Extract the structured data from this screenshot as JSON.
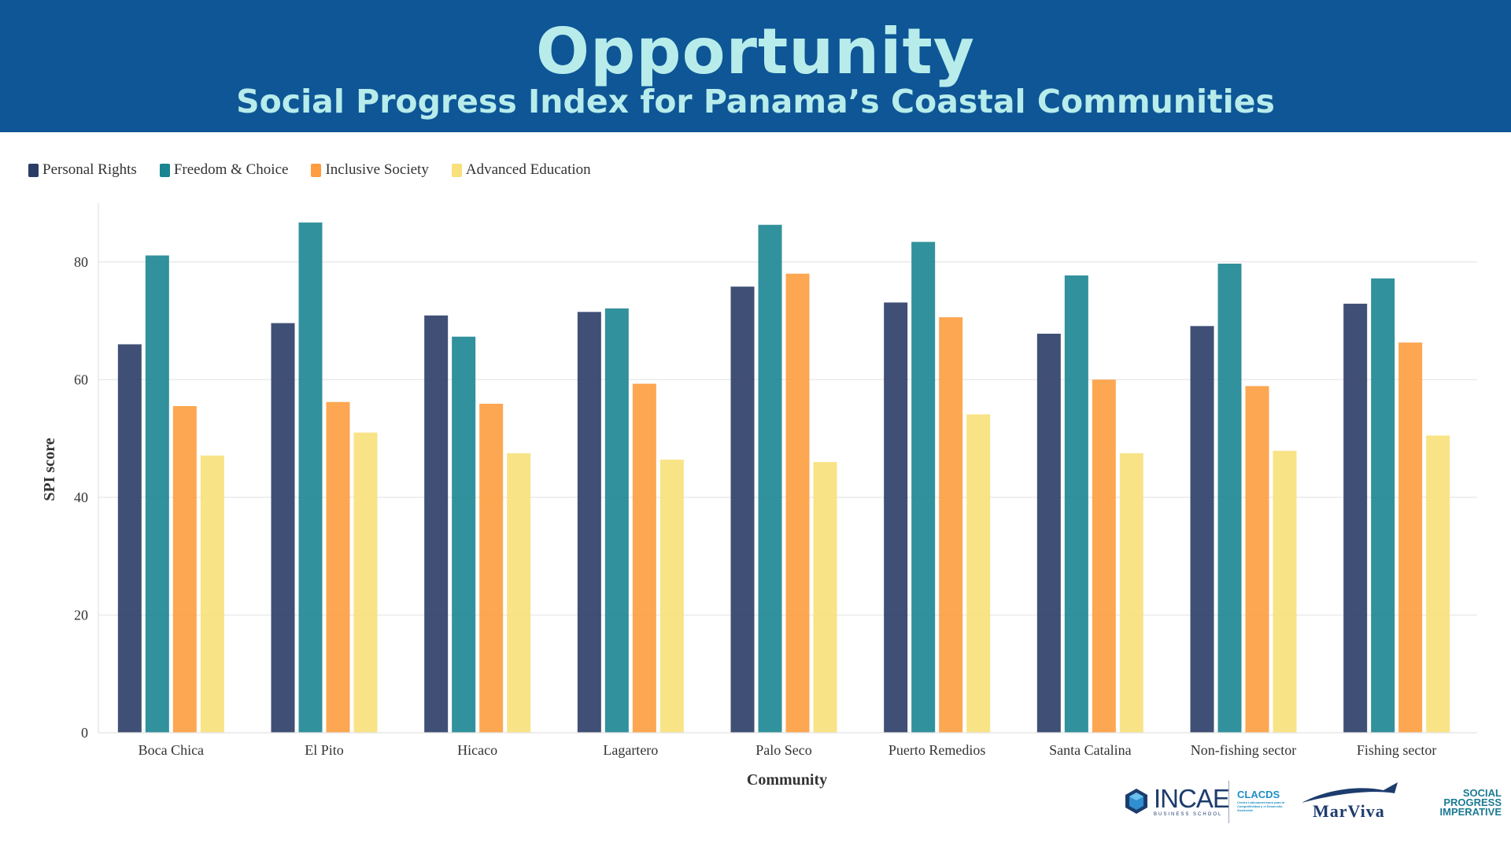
{
  "header": {
    "title": "Opportunity",
    "subtitle": "Social Progress Index for Panama’s Coastal Communities",
    "background": "#0e5696",
    "text_color": "#b7eceb"
  },
  "chart_data": {
    "type": "bar",
    "title": "",
    "xlabel": "Community",
    "ylabel": "SPI score",
    "ylim": [
      0,
      90
    ],
    "yticks": [
      0,
      20,
      40,
      60,
      80
    ],
    "grid": true,
    "legend_position": "top-left",
    "categories": [
      "Boca Chica",
      "El Pito",
      "Hicaco",
      "Lagartero",
      "Palo Seco",
      "Puerto Remedios",
      "Santa Catalina",
      "Non-fishing sector",
      "Fishing sector"
    ],
    "series": [
      {
        "name": "Personal Rights",
        "color": "#2b3c66",
        "values": [
          66.0,
          69.6,
          70.9,
          71.5,
          75.8,
          73.1,
          67.8,
          69.1,
          72.9
        ]
      },
      {
        "name": "Freedom & Choice",
        "color": "#1b8591",
        "values": [
          81.1,
          86.7,
          67.3,
          72.1,
          86.3,
          83.4,
          77.7,
          79.7,
          77.2
        ]
      },
      {
        "name": "Inclusive Society",
        "color": "#fd9d3f",
        "values": [
          55.5,
          56.2,
          55.9,
          59.3,
          78.0,
          70.6,
          60.0,
          58.9,
          66.3
        ]
      },
      {
        "name": "Advanced Education",
        "color": "#f8e07a",
        "values": [
          47.1,
          51.0,
          47.5,
          46.4,
          46.0,
          54.1,
          47.5,
          47.9,
          50.5
        ]
      }
    ]
  },
  "logos": {
    "incae": "INCAE",
    "incae_sub": "BUSINESS SCHOOL",
    "clacds": "CLACDS",
    "clacds_sub": "Centro Latinoamericano para la Competitividad y el Desarrollo Sostenible",
    "marviva": "MarViva",
    "spi_line1": "SOCIAL",
    "spi_line2": "PROGRESS",
    "spi_line3": "IMPERATIVE"
  }
}
